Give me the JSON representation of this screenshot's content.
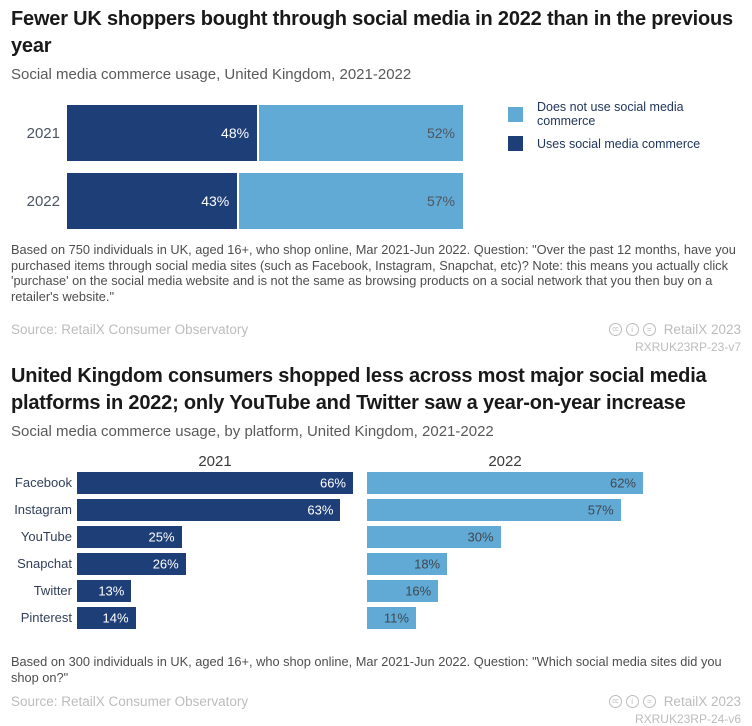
{
  "colors": {
    "uses_color": "#1e3e78",
    "does_not_color": "#62aad6",
    "separator": "#ffffff"
  },
  "chart1": {
    "title": "Fewer UK shoppers bought through social media in 2022 than in the previous year",
    "subtitle": "Social media commerce usage, United Kingdom, 2021-2022",
    "footnote": "Based on 750 individuals in UK, aged 16+, who shop online, Mar 2021-Jun 2022. Question: \"Over the past 12 months, have you purchased items through social media sites (such as Facebook, Instagram, Snapchat, etc)? Note: this means you actually click 'purchase' on the social media website and is not the same as browsing products on a social network that you then buy on a retailer's website.\"",
    "source": "Source: RetailX Consumer Observatory",
    "credit": "RetailX 2023",
    "version": "RXRUK23RP-23-v7",
    "license_icons": [
      "cc-icon",
      "cc-by-icon",
      "cc-nd-icon"
    ]
  },
  "chart2": {
    "title": "United Kingdom consumers shopped less across most major social media platforms in 2022; only YouTube and Twitter saw a year-on-year increase",
    "subtitle": "Social media commerce usage, by platform, United Kingdom, 2021-2022",
    "footnote": "Based on 300 individuals in UK, aged 16+, who shop online, Mar 2021-Jun 2022. Question: \"Which social media sites did you shop on?\"",
    "source": "Source: RetailX Consumer Observatory",
    "credit": "RetailX 2023",
    "version": "RXRUK23RP-24-v6",
    "license_icons": [
      "cc-icon",
      "cc-by-icon",
      "cc-nd-icon"
    ]
  },
  "chart_data": [
    {
      "type": "bar",
      "variant": "horizontal-stacked",
      "title": "Fewer UK shoppers bought through social media in 2022 than in the previous year",
      "subtitle": "Social media commerce usage, United Kingdom, 2021-2022",
      "categories": [
        "2021",
        "2022"
      ],
      "series": [
        {
          "name": "Uses social media commerce",
          "color": "#1e3e78",
          "values": [
            48,
            43
          ]
        },
        {
          "name": "Does not use social media commerce",
          "color": "#62aad6",
          "values": [
            52,
            57
          ]
        }
      ],
      "unit": "%",
      "xlim": [
        0,
        100
      ],
      "grid": false,
      "legend_position": "top-right",
      "value_labels": "inside-end-of-segment"
    },
    {
      "type": "bar",
      "variant": "horizontal-small-multiples",
      "title": "United Kingdom consumers shopped less across most major social media platforms in 2022; only YouTube and Twitter saw a year-on-year increase",
      "subtitle": "Social media commerce usage, by platform, United Kingdom, 2021-2022",
      "categories": [
        "Facebook",
        "Instagram",
        "YouTube",
        "Snapchat",
        "Twitter",
        "Pinterest"
      ],
      "series": [
        {
          "name": "2021",
          "color": "#1e3e78",
          "values": [
            66,
            63,
            25,
            26,
            13,
            14
          ]
        },
        {
          "name": "2022",
          "color": "#62aad6",
          "values": [
            62,
            57,
            30,
            18,
            16,
            11
          ]
        }
      ],
      "unit": "%",
      "grid": false,
      "legend_position": "none",
      "value_labels": "inside-end",
      "panel_scale": "independent-max"
    }
  ]
}
